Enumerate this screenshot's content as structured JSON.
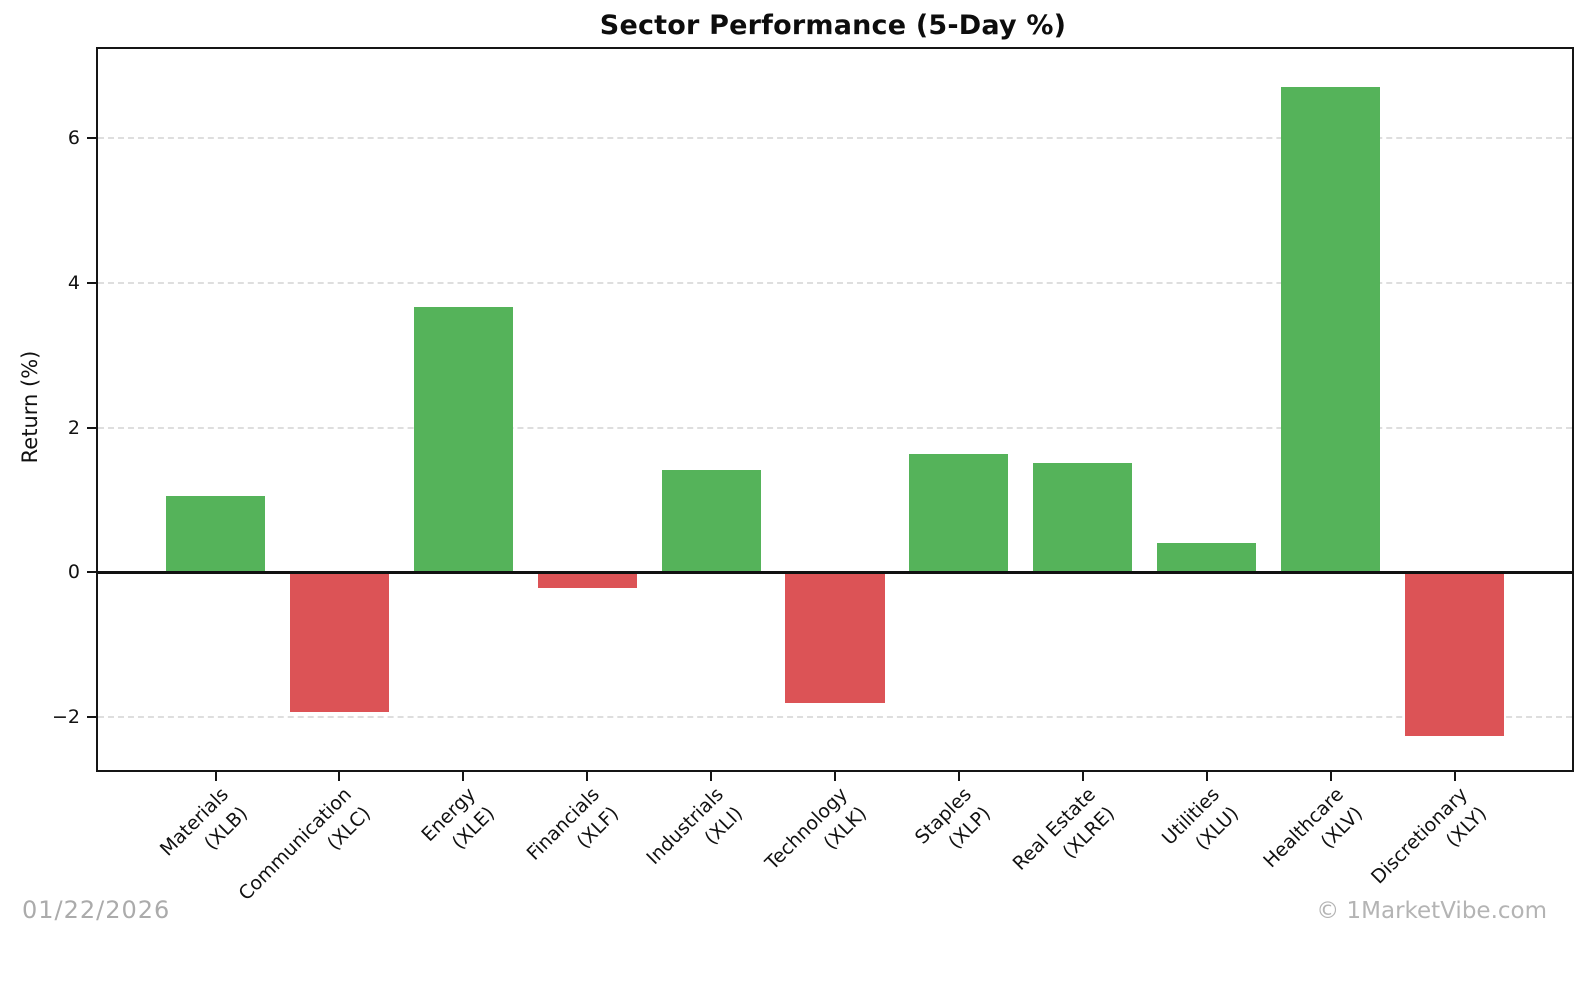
{
  "chart_data": {
    "type": "bar",
    "title": "Sector Performance (5-Day %)",
    "xlabel": "",
    "ylabel": "Return (%)",
    "categories": [
      "Materials",
      "Communication",
      "Energy",
      "Financials",
      "Industrials",
      "Technology",
      "Staples",
      "Real Estate",
      "Utilities",
      "Healthcare",
      "Discretionary"
    ],
    "tickers": [
      "XLB",
      "XLC",
      "XLE",
      "XLF",
      "XLI",
      "XLK",
      "XLP",
      "XLRE",
      "XLU",
      "XLV",
      "XLY"
    ],
    "values": [
      1.05,
      -1.93,
      3.67,
      -0.22,
      1.41,
      -1.81,
      1.63,
      1.51,
      0.4,
      6.71,
      -2.26
    ],
    "ylim": [
      -2.73,
      7.23
    ],
    "yticks": [
      -2,
      0,
      2,
      4,
      6
    ],
    "grid": "horizontal-dashed",
    "legend": "none",
    "colors": {
      "positive": "#55b35a",
      "negative": "#dc5356",
      "gridline": "#dedede",
      "axis": "#151515",
      "watermark": "#ababab"
    }
  },
  "footer": {
    "date": "01/22/2026",
    "credit": "© 1MarketVibe.com"
  }
}
